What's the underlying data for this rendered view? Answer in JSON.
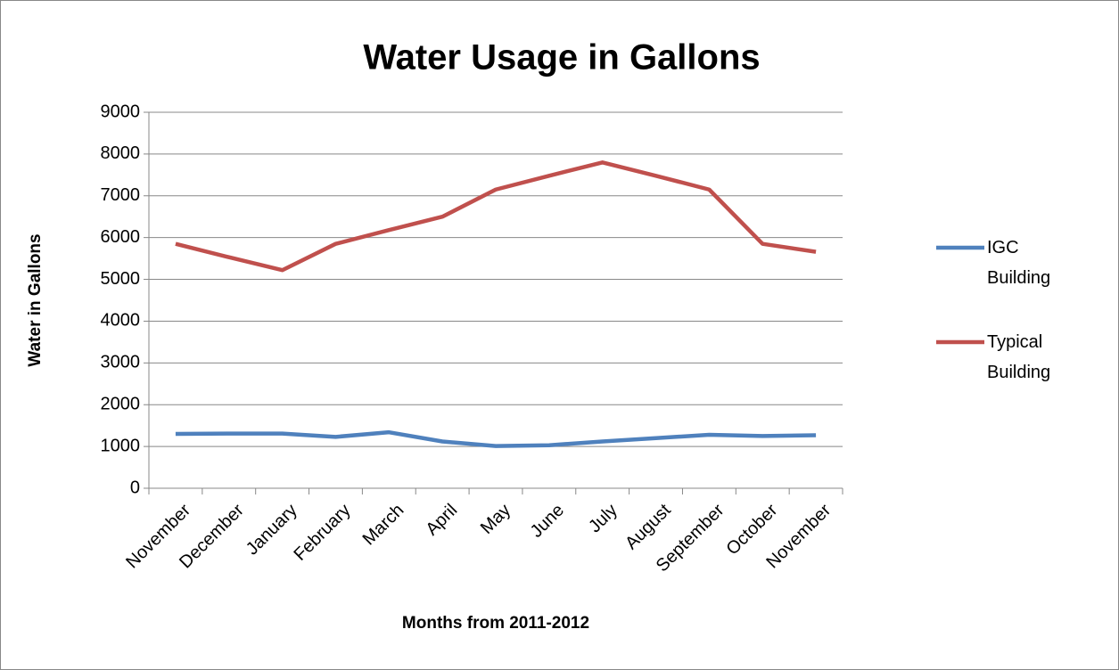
{
  "chart_data": {
    "type": "line",
    "title": "Water Usage in Gallons",
    "x_label": "Months from 2011-2012",
    "y_label": "Water in Gallons",
    "categories": [
      "November",
      "December",
      "January",
      "February",
      "March",
      "April",
      "May",
      "June",
      "July",
      "August",
      "September",
      "October",
      "November"
    ],
    "series": [
      {
        "name": "IGC Building",
        "color": "#4f81bd",
        "values": [
          1300,
          1310,
          1310,
          1230,
          1340,
          1120,
          1010,
          1030,
          1120,
          1200,
          1280,
          1250,
          1270
        ]
      },
      {
        "name": "Typical Building",
        "color": "#c0504d",
        "values": [
          5850,
          5530,
          5220,
          5850,
          6180,
          6500,
          7150,
          7480,
          7800,
          7480,
          7150,
          5850,
          5660
        ]
      }
    ],
    "ylim": [
      0,
      9000
    ],
    "yticks": [
      0,
      1000,
      2000,
      3000,
      4000,
      5000,
      6000,
      7000,
      8000,
      9000
    ],
    "grid": true,
    "legend": "right"
  }
}
